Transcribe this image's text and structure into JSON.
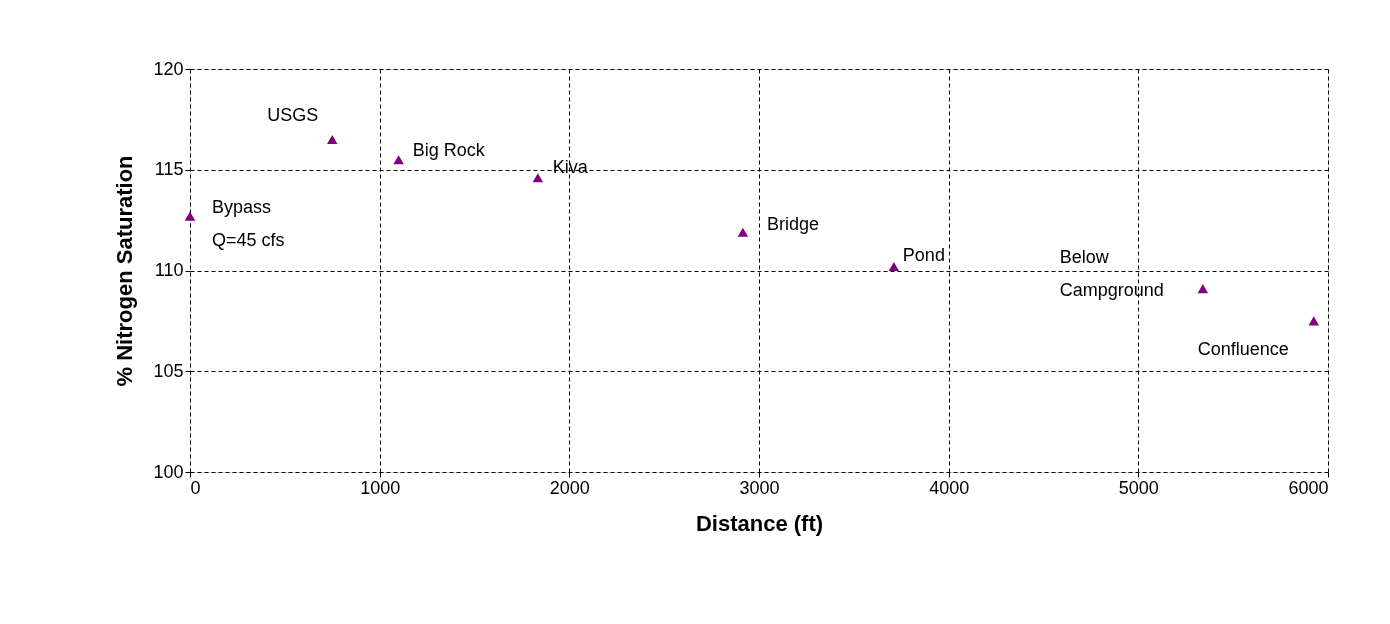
{
  "chart_data": {
    "type": "scatter",
    "xlabel": "Distance (ft)",
    "ylabel": "% Nitrogen Saturation",
    "x": [
      0,
      750,
      1100,
      1834,
      2915,
      3711,
      5340,
      5925
    ],
    "values": [
      112.7,
      116.5,
      115.5,
      114.6,
      111.9,
      110.2,
      109.1,
      107.5
    ],
    "color": "#800080",
    "marker": "triangle",
    "grid": true,
    "xlim": [
      0,
      6000
    ],
    "xticks": [
      0,
      1000,
      2000,
      3000,
      4000,
      5000,
      6000
    ],
    "ylim": [
      100,
      120
    ],
    "yticks": [
      100,
      105,
      110,
      115,
      120
    ],
    "annotations": [
      {
        "text": "Bypass\nQ=45 cfs",
        "x": 0,
        "y": 112.7
      },
      {
        "text": "USGS",
        "x": 750,
        "y": 116.5
      },
      {
        "text": "Big Rock",
        "x": 1100,
        "y": 115.5
      },
      {
        "text": "Kiva",
        "x": 1834,
        "y": 114.6
      },
      {
        "text": "Bridge",
        "x": 2915,
        "y": 111.9
      },
      {
        "text": "Pond",
        "x": 3711,
        "y": 110.2
      },
      {
        "text": "Below\nCampground",
        "x": 5340,
        "y": 109.1
      },
      {
        "text": "Confluence",
        "x": 5925,
        "y": 107.5
      }
    ]
  }
}
